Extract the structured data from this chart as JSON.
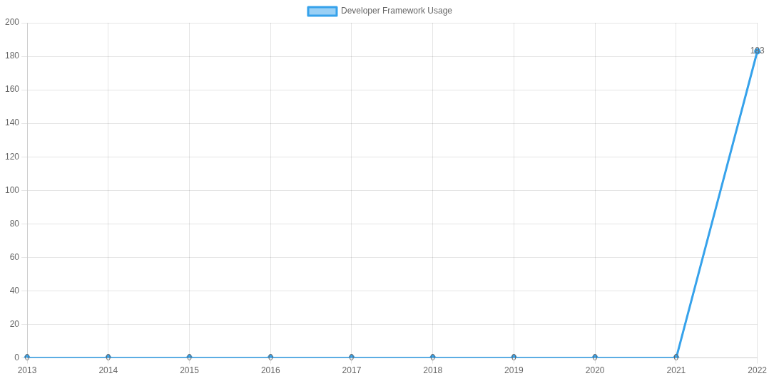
{
  "chart_data": {
    "type": "line",
    "categories": [
      "2013",
      "2014",
      "2015",
      "2016",
      "2017",
      "2018",
      "2019",
      "2020",
      "2021",
      "2022"
    ],
    "series": [
      {
        "name": "Developer Framework Usage",
        "color": "#36a2eb",
        "values": [
          0,
          0,
          0,
          0,
          0,
          0,
          0,
          0,
          0,
          183
        ]
      }
    ],
    "ylim": [
      0,
      200
    ],
    "yticks": [
      0,
      20,
      40,
      60,
      80,
      100,
      120,
      140,
      160,
      180,
      200
    ],
    "grid": true,
    "legend": "top",
    "data_labels": true,
    "marker": "circle",
    "line_style": "solid"
  }
}
